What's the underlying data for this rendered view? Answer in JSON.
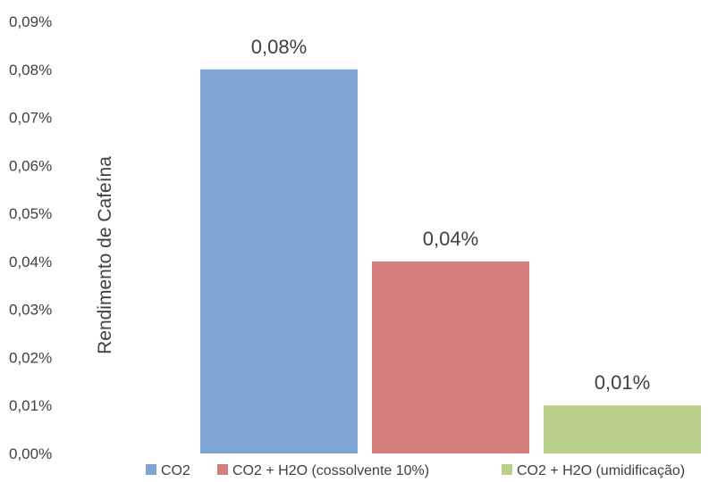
{
  "chart_data": {
    "type": "bar",
    "categories": [
      "CO2",
      "CO2 + H2O (cossolvente 10%)",
      "CO2 + H2O (umidificação)"
    ],
    "values": [
      0.08,
      0.04,
      0.01
    ],
    "value_labels": [
      "0,08%",
      "0,04%",
      "0,01%"
    ],
    "colors": [
      "#7fa6d3",
      "#d47f7e",
      "#bad08a"
    ],
    "ylabel": "Rendimento de Cafeína",
    "xlabel": "",
    "ylim": [
      0,
      0.09
    ],
    "yticks": [
      0,
      0.01,
      0.02,
      0.03,
      0.04,
      0.05,
      0.06,
      0.07,
      0.08,
      0.09
    ],
    "ytick_labels": [
      "0,00%",
      "0,01%",
      "0,02%",
      "0,03%",
      "0,04%",
      "0,05%",
      "0,06%",
      "0,07%",
      "0,08%",
      "0,09%"
    ],
    "grid": false,
    "legend": {
      "position": "bottom",
      "entries": [
        "CO2",
        "CO2 + H2O (cossolvente 10%)",
        "CO2 + H2O (umidificação)"
      ]
    }
  }
}
